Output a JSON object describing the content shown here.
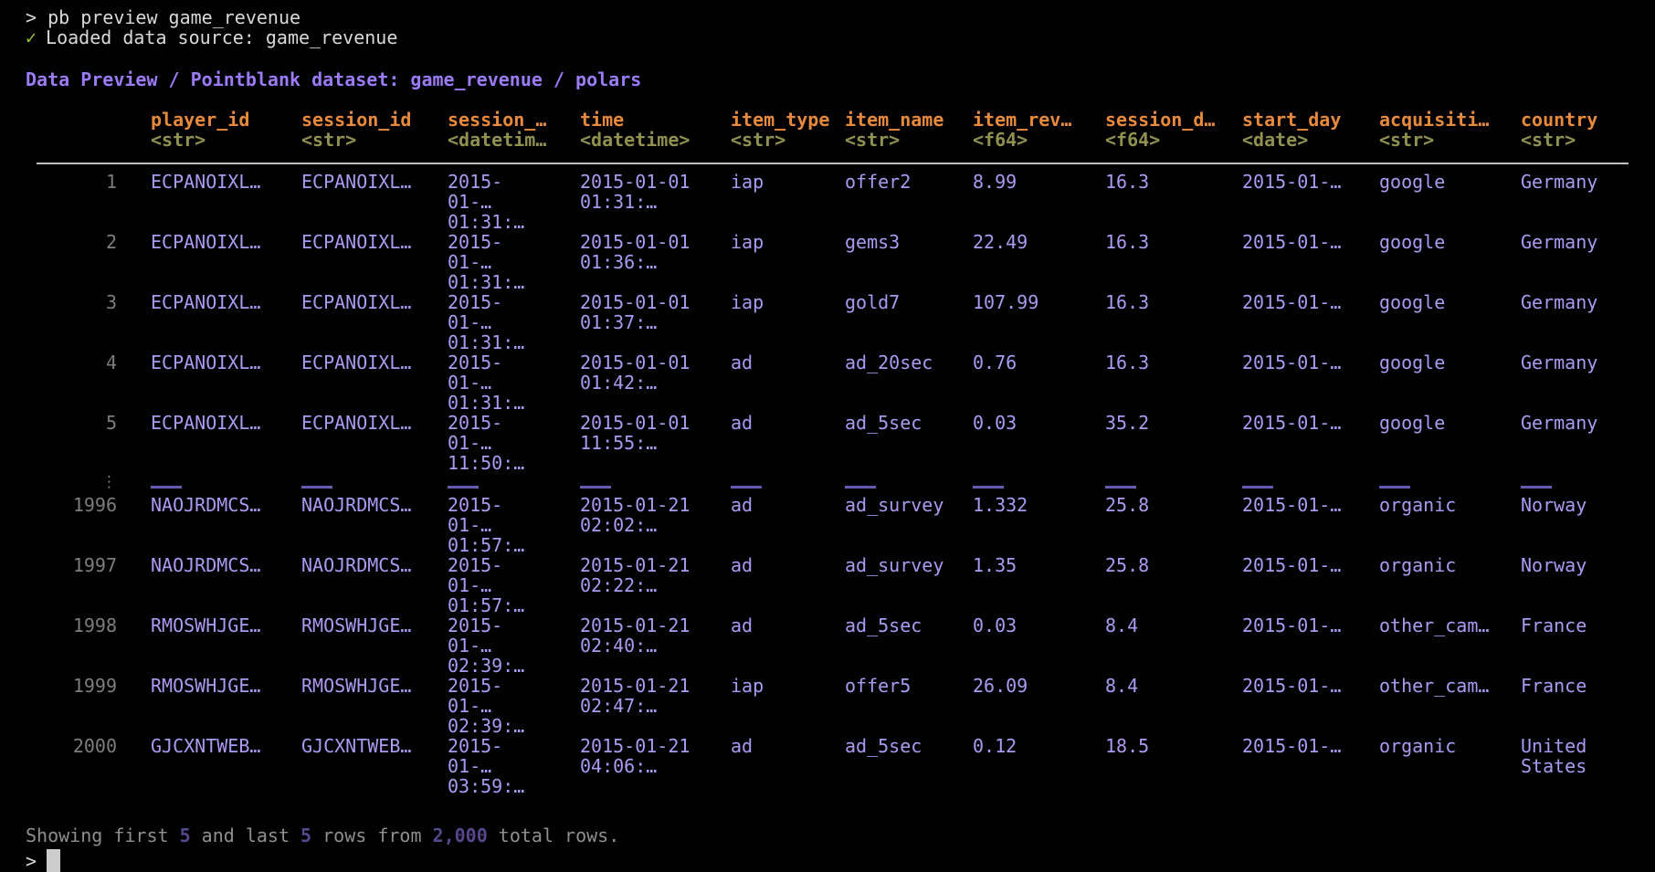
{
  "terminal": {
    "command_line": {
      "prompt": "> ",
      "command": "pb preview game_revenue"
    },
    "load_status": {
      "icon": "✓",
      "text": "Loaded data source: game_revenue"
    },
    "title": "Data Preview / Pointblank dataset: game_revenue / polars",
    "footer": {
      "prefix": "Showing first ",
      "first_count": "5",
      "and_last": " and last ",
      "last_count": "5",
      "rows_from": " rows from ",
      "total_count": "2,000",
      "suffix": " total rows."
    },
    "prompt": ">"
  },
  "table": {
    "ellipsis_marker": "⋮",
    "columns": [
      {
        "label": "player_id",
        "type": "<str>"
      },
      {
        "label": "session_id",
        "type": "<str>"
      },
      {
        "label": "session_…",
        "type": "<datetim…"
      },
      {
        "label": "time",
        "type": "<datetime>"
      },
      {
        "label": "item_type",
        "type": "<str>"
      },
      {
        "label": "item_name",
        "type": "<str>"
      },
      {
        "label": "item_rev…",
        "type": "<f64>"
      },
      {
        "label": "session_d…",
        "type": "<f64>"
      },
      {
        "label": "start_day",
        "type": "<date>"
      },
      {
        "label": "acquisiti…",
        "type": "<str>"
      },
      {
        "label": "country",
        "type": "<str>"
      }
    ],
    "rows": [
      {
        "num": "1",
        "cells": [
          "ECPANOIXL…",
          "ECPANOIXL…",
          "2015-01-…\n01:31:…",
          "2015-01-01\n01:31:…",
          "iap",
          "offer2",
          "8.99",
          "16.3",
          "2015-01-…",
          "google",
          "Germany"
        ]
      },
      {
        "num": "2",
        "cells": [
          "ECPANOIXL…",
          "ECPANOIXL…",
          "2015-01-…\n01:31:…",
          "2015-01-01\n01:36:…",
          "iap",
          "gems3",
          "22.49",
          "16.3",
          "2015-01-…",
          "google",
          "Germany"
        ]
      },
      {
        "num": "3",
        "cells": [
          "ECPANOIXL…",
          "ECPANOIXL…",
          "2015-01-…\n01:31:…",
          "2015-01-01\n01:37:…",
          "iap",
          "gold7",
          "107.99",
          "16.3",
          "2015-01-…",
          "google",
          "Germany"
        ]
      },
      {
        "num": "4",
        "cells": [
          "ECPANOIXL…",
          "ECPANOIXL…",
          "2015-01-…\n01:31:…",
          "2015-01-01\n01:42:…",
          "ad",
          "ad_20sec",
          "0.76",
          "16.3",
          "2015-01-…",
          "google",
          "Germany"
        ]
      },
      {
        "num": "5",
        "cells": [
          "ECPANOIXL…",
          "ECPANOIXL…",
          "2015-01-…\n11:50:…",
          "2015-01-01\n11:55:…",
          "ad",
          "ad_5sec",
          "0.03",
          "35.2",
          "2015-01-…",
          "google",
          "Germany"
        ]
      },
      {
        "type": "ellipsis"
      },
      {
        "num": "1996",
        "cells": [
          "NAOJRDMCS…",
          "NAOJRDMCS…",
          "2015-01-…\n01:57:…",
          "2015-01-21\n02:02:…",
          "ad",
          "ad_survey",
          "1.332",
          "25.8",
          "2015-01-…",
          "organic",
          "Norway"
        ]
      },
      {
        "num": "1997",
        "cells": [
          "NAOJRDMCS…",
          "NAOJRDMCS…",
          "2015-01-…\n01:57:…",
          "2015-01-21\n02:22:…",
          "ad",
          "ad_survey",
          "1.35",
          "25.8",
          "2015-01-…",
          "organic",
          "Norway"
        ]
      },
      {
        "num": "1998",
        "cells": [
          "RMOSWHJGE…",
          "RMOSWHJGE…",
          "2015-01-…\n02:39:…",
          "2015-01-21\n02:40:…",
          "ad",
          "ad_5sec",
          "0.03",
          "8.4",
          "2015-01-…",
          "other_cam…",
          "France"
        ]
      },
      {
        "num": "1999",
        "cells": [
          "RMOSWHJGE…",
          "RMOSWHJGE…",
          "2015-01-…\n02:39:…",
          "2015-01-21\n02:47:…",
          "iap",
          "offer5",
          "26.09",
          "8.4",
          "2015-01-…",
          "other_cam…",
          "France"
        ]
      },
      {
        "num": "2000",
        "cells": [
          "GJCXNTWEB…",
          "GJCXNTWEB…",
          "2015-01-…\n03:59:…",
          "2015-01-21\n04:06:…",
          "ad",
          "ad_5sec",
          "0.12",
          "18.5",
          "2015-01-…",
          "organic",
          "United States"
        ]
      }
    ]
  },
  "colors": {
    "background": "#000000",
    "default_text": "#d9d9d9",
    "check_green": "#9bc234",
    "title_purple": "#9c7bf8",
    "header_orange": "#e88a3c",
    "type_olive": "#90904f",
    "data_lavender": "#ac9af2",
    "row_number_gray": "#7d7d7d",
    "divider_gray": "#bfbfbf",
    "ellipsis_dash_purple": "#6a58b0",
    "footer_gray": "#8f8f8f",
    "footer_number_violet": "#57478f",
    "cursor_gray": "#cccccc"
  }
}
